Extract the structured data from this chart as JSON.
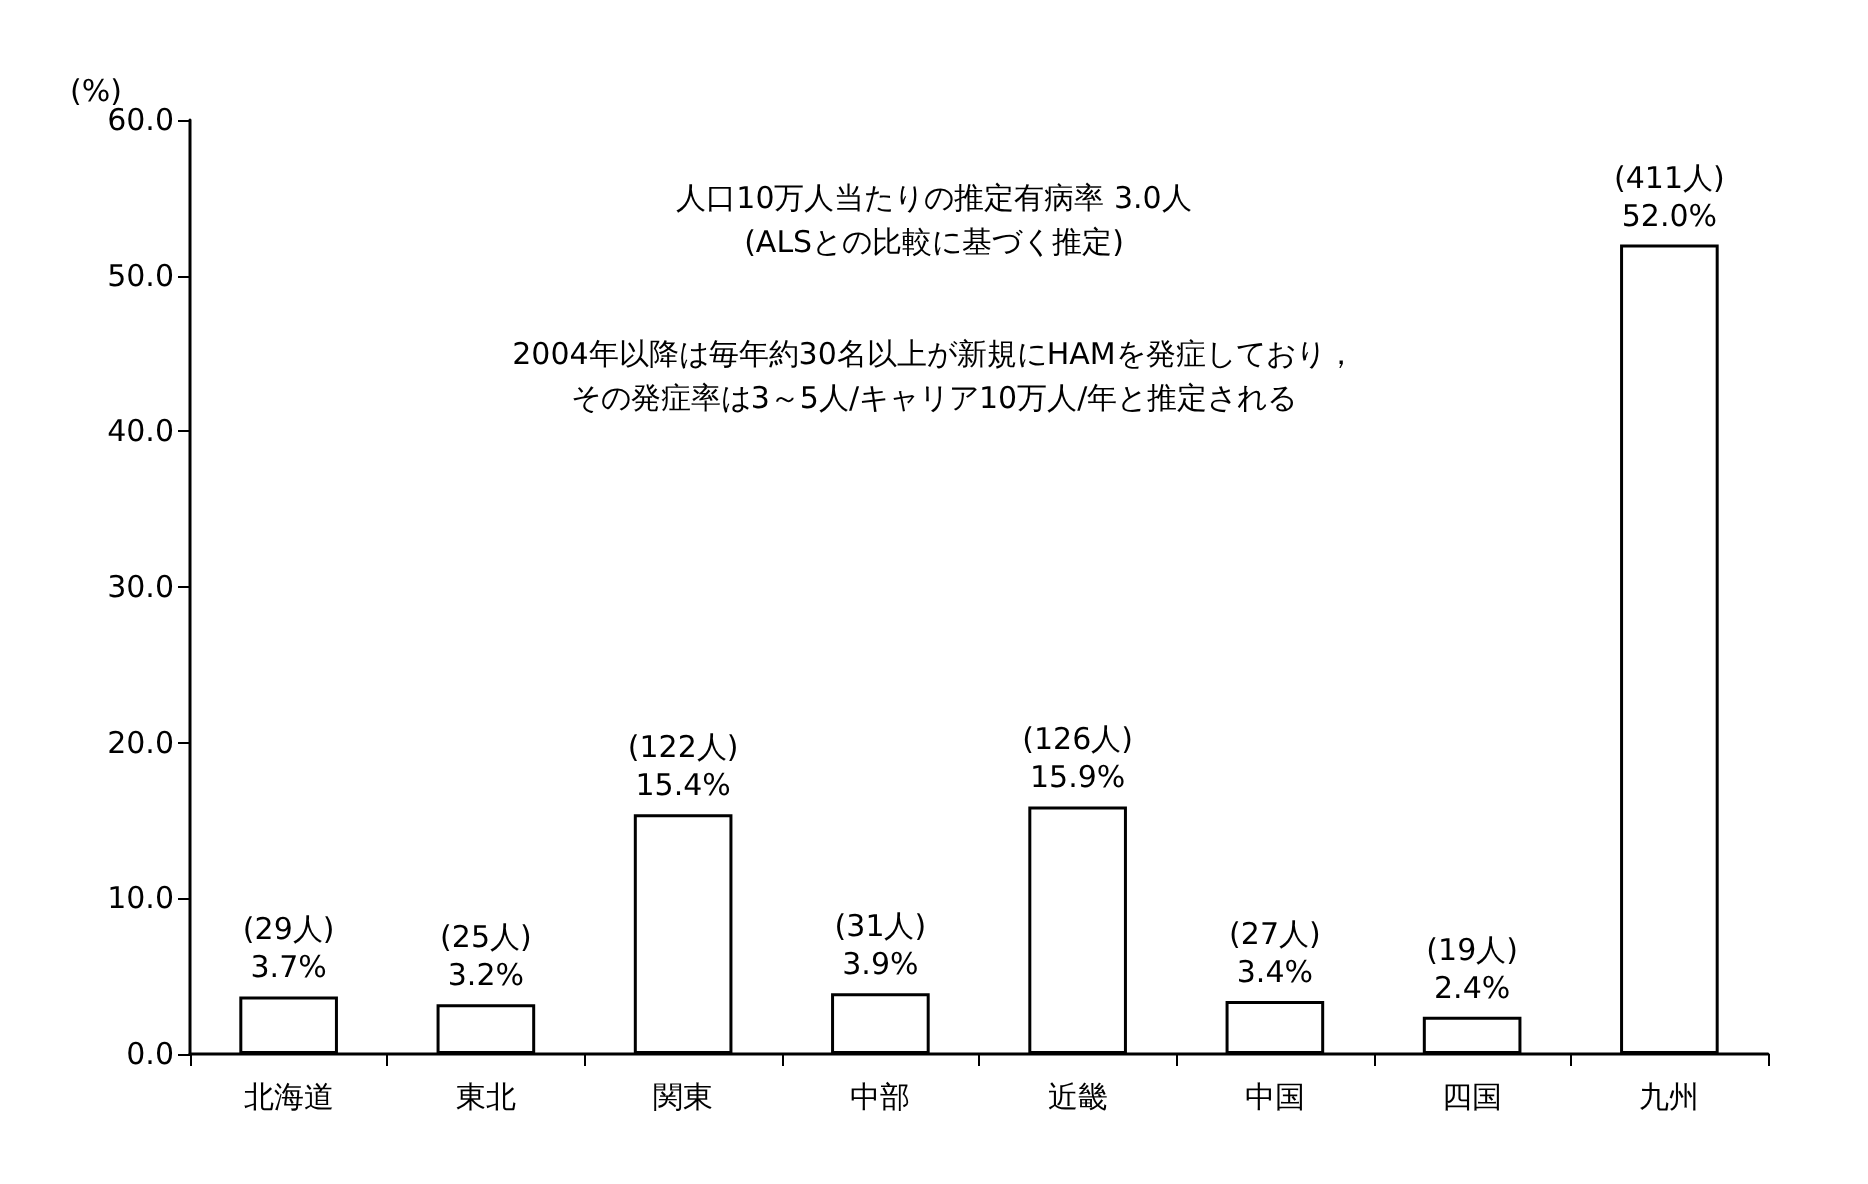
{
  "chart_data": {
    "type": "bar",
    "ylabel": "(%)",
    "categories": [
      "北海道",
      "東北",
      "関東",
      "中部",
      "近畿",
      "中国",
      "四国",
      "九州"
    ],
    "values": [
      3.7,
      3.2,
      15.4,
      3.9,
      15.9,
      3.4,
      2.4,
      52.0
    ],
    "value_labels": [
      "(29人)\n3.7%",
      "(25人)\n3.2%",
      "(122人)\n15.4%",
      "(31人)\n3.9%",
      "(126人)\n15.9%",
      "(27人)\n3.4%",
      "(19人)\n2.4%",
      "(411人)\n52.0%"
    ],
    "color": "#ffffff",
    "ylim": [
      0,
      60
    ],
    "yticks": [
      {
        "value": 0,
        "label": "0.0"
      },
      {
        "value": 10,
        "label": "10.0"
      },
      {
        "value": 20,
        "label": "20.0"
      },
      {
        "value": 30,
        "label": "30.0"
      },
      {
        "value": 40,
        "label": "40.0"
      },
      {
        "value": 50,
        "label": "50.0"
      },
      {
        "value": 60,
        "label": "60.0"
      }
    ],
    "annotations": [
      "人口10万人当たりの推定有病率 3.0人",
      "(ALSとの比較に基づく推定)",
      "2004年以降は毎年約30名以上が新規にHAMを発症しており，",
      "その発症率は3～5人/キャリア10万人/年と推定される"
    ],
    "grid": false
  }
}
